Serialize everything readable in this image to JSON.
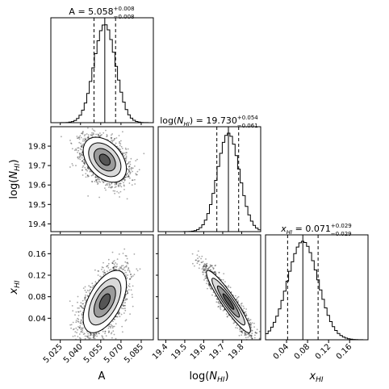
{
  "chart_data": {
    "type": "corner",
    "parameters": [
      {
        "key": "A",
        "title": {
          "prefix": "A = ",
          "value": "5.058",
          "plus": "+0.008",
          "minus": "−0.008"
        },
        "axis_label": "A",
        "range": [
          5.018,
          5.094
        ],
        "ticks": [
          "5.025",
          "5.040",
          "5.055",
          "5.070",
          "5.085"
        ],
        "tick_values": [
          5.025,
          5.04,
          5.055,
          5.07,
          5.085
        ],
        "median": 5.058,
        "q_low": 5.05,
        "q_high": 5.066,
        "sigma": 0.008
      },
      {
        "key": "logNHI",
        "title": {
          "prefix": "log(",
          "sym": "N",
          "sub": "HI",
          "suffix": ") = ",
          "value": "19.730",
          "plus": "+0.054",
          "minus": "−0.061"
        },
        "axis_label": {
          "prefix": "log(",
          "sym": "N",
          "sub": "HI",
          "suffix": ")"
        },
        "range": [
          19.36,
          19.9
        ],
        "ticks": [
          "19.4",
          "19.5",
          "19.6",
          "19.7",
          "19.8"
        ],
        "tick_values": [
          19.4,
          19.5,
          19.6,
          19.7,
          19.8
        ],
        "median": 19.73,
        "q_low": 19.669,
        "q_high": 19.784,
        "sigma": 0.058
      },
      {
        "key": "xHI",
        "title": {
          "sym": "x",
          "sub": "HI",
          "suffix": " = ",
          "value": "0.071",
          "plus": "+0.029",
          "minus": "−0.029"
        },
        "axis_label": {
          "sym": "x",
          "sub": "HI"
        },
        "range": [
          0.0,
          0.195
        ],
        "ticks": [
          "0.04",
          "0.08",
          "0.12",
          "0.16"
        ],
        "tick_values": [
          0.04,
          0.08,
          0.12,
          0.16
        ],
        "median": 0.071,
        "q_low": 0.042,
        "q_high": 0.1,
        "sigma": 0.029
      }
    ],
    "correlations": {
      "A_logNHI": -0.4,
      "A_xHI": 0.55,
      "logNHI_xHI": -0.93
    }
  }
}
